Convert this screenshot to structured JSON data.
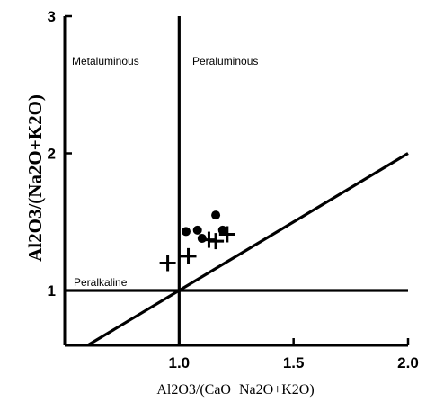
{
  "chart_data": {
    "type": "scatter",
    "title": "",
    "xlabel": "Al2O3/(CaO+Na2O+K2O)",
    "ylabel": "Al2O3/(Na2O+K2O)",
    "xlim": [
      0.5,
      2.0
    ],
    "ylim": [
      0.6,
      3.0
    ],
    "x_ticks": [
      1.0,
      1.5,
      2.0
    ],
    "x_tick_labels": [
      "1.0",
      "1.5",
      "2.0"
    ],
    "y_ticks": [
      1,
      2,
      3
    ],
    "y_tick_labels": [
      "1",
      "2",
      "3"
    ],
    "grid": false,
    "region_labels": {
      "metaluminous": "Metaluminous",
      "peraluminous": "Peraluminous",
      "peralkaline": "Peralkaline"
    },
    "divider_lines": [
      {
        "name": "vertical",
        "points": [
          [
            1.0,
            0.6
          ],
          [
            1.0,
            3.0
          ]
        ]
      },
      {
        "name": "horizontal",
        "points": [
          [
            0.5,
            1.0
          ],
          [
            2.0,
            1.0
          ]
        ]
      },
      {
        "name": "diagonal",
        "points": [
          [
            0.5,
            0.5
          ],
          [
            2.0,
            2.0
          ]
        ]
      }
    ],
    "series": [
      {
        "marker": "circle",
        "x": [
          1.03,
          1.08,
          1.1,
          1.16,
          1.19
        ],
        "y": [
          1.43,
          1.44,
          1.38,
          1.55,
          1.44
        ]
      },
      {
        "marker": "plus",
        "x": [
          0.95,
          1.04,
          1.13,
          1.16,
          1.21
        ],
        "y": [
          1.2,
          1.25,
          1.37,
          1.36,
          1.41
        ]
      }
    ]
  }
}
